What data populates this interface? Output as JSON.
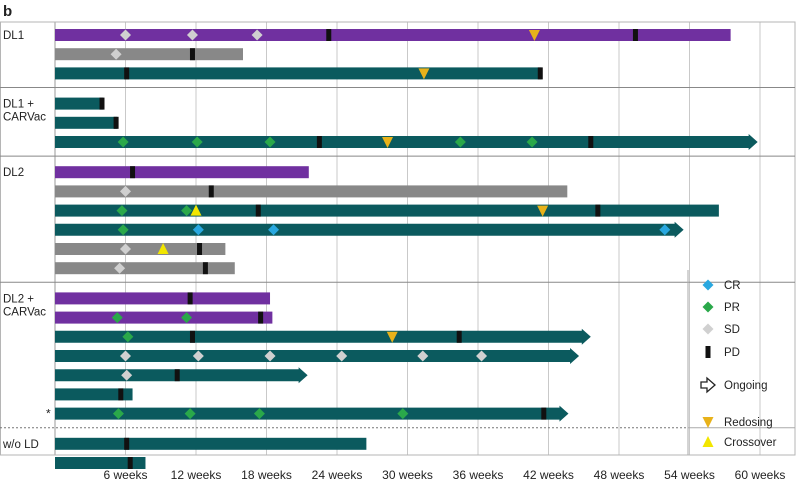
{
  "chart_data": {
    "type": "swimmer",
    "panel_label": "b",
    "x_unit": "weeks",
    "xlim": [
      0,
      60
    ],
    "x_ticks": [
      6,
      12,
      18,
      24,
      30,
      36,
      42,
      48,
      54,
      60
    ],
    "x_tick_labels": [
      "6 weeks",
      "12 weeks",
      "18 weeks",
      "24 weeks",
      "30 weeks",
      "36 weeks",
      "42 weeks",
      "48 weeks",
      "54 weeks",
      "60 weeks"
    ],
    "colors": {
      "purple": "#7030a0",
      "gray": "#888888",
      "teal": "#0b5a5e",
      "CR": "#29a8e0",
      "PR": "#2aa84a",
      "SD": "#d0d0d0",
      "PD": "#111111",
      "Redosing": "#e8b21a",
      "Crossover": "#f2e600"
    },
    "groups": [
      {
        "label": "DL1",
        "patients": [
          {
            "end": 57.5,
            "color": "purple",
            "ongoing": false,
            "markers": [
              {
                "t": 6,
                "type": "SD"
              },
              {
                "t": 11.7,
                "type": "SD"
              },
              {
                "t": 17.2,
                "type": "SD"
              },
              {
                "t": 23.3,
                "type": "PD"
              },
              {
                "t": 40.8,
                "type": "Redosing"
              },
              {
                "t": 49.4,
                "type": "PD"
              }
            ]
          },
          {
            "end": 16,
            "color": "gray",
            "ongoing": false,
            "markers": [
              {
                "t": 5.2,
                "type": "SD"
              },
              {
                "t": 11.7,
                "type": "PD"
              }
            ]
          },
          {
            "end": 41.4,
            "color": "teal",
            "ongoing": false,
            "markers": [
              {
                "t": 6.1,
                "type": "PD"
              },
              {
                "t": 31.4,
                "type": "Redosing"
              },
              {
                "t": 41.3,
                "type": "PD"
              }
            ]
          }
        ]
      },
      {
        "label": "DL1 + CARVac",
        "patients": [
          {
            "end": 4.1,
            "color": "teal",
            "ongoing": false,
            "markers": [
              {
                "t": 4.0,
                "type": "PD"
              }
            ]
          },
          {
            "end": 5.3,
            "color": "teal",
            "ongoing": false,
            "markers": [
              {
                "t": 5.2,
                "type": "PD"
              }
            ]
          },
          {
            "end": 59.8,
            "color": "teal",
            "ongoing": true,
            "markers": [
              {
                "t": 5.8,
                "type": "PR"
              },
              {
                "t": 12.1,
                "type": "PR"
              },
              {
                "t": 18.3,
                "type": "PR"
              },
              {
                "t": 22.5,
                "type": "PD"
              },
              {
                "t": 28.3,
                "type": "Redosing"
              },
              {
                "t": 34.5,
                "type": "PR"
              },
              {
                "t": 40.6,
                "type": "PR"
              },
              {
                "t": 45.6,
                "type": "PD"
              }
            ]
          }
        ]
      },
      {
        "label": "DL2",
        "patients": [
          {
            "end": 21.6,
            "color": "purple",
            "ongoing": false,
            "markers": [
              {
                "t": 6.6,
                "type": "PD"
              }
            ]
          },
          {
            "end": 43.6,
            "color": "gray",
            "ongoing": false,
            "markers": [
              {
                "t": 6,
                "type": "SD"
              },
              {
                "t": 13.3,
                "type": "PD"
              }
            ]
          },
          {
            "end": 56.5,
            "color": "teal",
            "ongoing": false,
            "markers": [
              {
                "t": 5.7,
                "type": "PR"
              },
              {
                "t": 11.2,
                "type": "PR"
              },
              {
                "t": 12,
                "type": "Crossover"
              },
              {
                "t": 17.3,
                "type": "PD"
              },
              {
                "t": 41.5,
                "type": "Redosing"
              },
              {
                "t": 46.2,
                "type": "PD"
              }
            ]
          },
          {
            "end": 53.5,
            "color": "teal",
            "ongoing": true,
            "markers": [
              {
                "t": 5.8,
                "type": "PR"
              },
              {
                "t": 12.2,
                "type": "CR"
              },
              {
                "t": 18.6,
                "type": "CR"
              },
              {
                "t": 51.9,
                "type": "CR"
              }
            ]
          },
          {
            "end": 14.5,
            "color": "gray",
            "ongoing": false,
            "markers": [
              {
                "t": 6,
                "type": "SD"
              },
              {
                "t": 9.2,
                "type": "Crossover"
              },
              {
                "t": 12.3,
                "type": "PD"
              }
            ]
          },
          {
            "end": 15.3,
            "color": "gray",
            "ongoing": false,
            "markers": [
              {
                "t": 5.5,
                "type": "SD"
              },
              {
                "t": 12.8,
                "type": "PD"
              }
            ]
          }
        ]
      },
      {
        "label": "DL2 + CARVac",
        "patients": [
          {
            "end": 18.3,
            "color": "purple",
            "ongoing": false,
            "markers": [
              {
                "t": 11.5,
                "type": "PD"
              }
            ]
          },
          {
            "end": 18.5,
            "color": "purple",
            "ongoing": false,
            "markers": [
              {
                "t": 5.3,
                "type": "PR"
              },
              {
                "t": 11.2,
                "type": "PR"
              },
              {
                "t": 17.5,
                "type": "PD"
              }
            ]
          },
          {
            "end": 45.6,
            "color": "teal",
            "ongoing": true,
            "markers": [
              {
                "t": 6.2,
                "type": "PR"
              },
              {
                "t": 11.7,
                "type": "PD"
              },
              {
                "t": 28.7,
                "type": "Redosing"
              },
              {
                "t": 34.4,
                "type": "PD"
              }
            ]
          },
          {
            "end": 44.6,
            "color": "teal",
            "ongoing": true,
            "markers": [
              {
                "t": 6,
                "type": "SD"
              },
              {
                "t": 12.2,
                "type": "SD"
              },
              {
                "t": 18.3,
                "type": "SD"
              },
              {
                "t": 24.4,
                "type": "SD"
              },
              {
                "t": 31.3,
                "type": "SD"
              },
              {
                "t": 36.3,
                "type": "SD"
              }
            ]
          },
          {
            "end": 21.5,
            "color": "teal",
            "ongoing": true,
            "markers": [
              {
                "t": 6.1,
                "type": "SD"
              },
              {
                "t": 10.4,
                "type": "PD"
              }
            ]
          },
          {
            "end": 6.6,
            "color": "teal",
            "ongoing": false,
            "markers": [
              {
                "t": 5.6,
                "type": "PD"
              }
            ]
          },
          {
            "end": 43.7,
            "color": "teal",
            "ongoing": true,
            "label": "*",
            "markers": [
              {
                "t": 5.4,
                "type": "PR"
              },
              {
                "t": 11.5,
                "type": "PR"
              },
              {
                "t": 17.4,
                "type": "PR"
              },
              {
                "t": 29.6,
                "type": "PR"
              },
              {
                "t": 41.6,
                "type": "PD"
              }
            ]
          }
        ]
      },
      {
        "label": "w/o LD",
        "patients": [
          {
            "end": 26.5,
            "color": "teal",
            "ongoing": false,
            "markers": [
              {
                "t": 6.1,
                "type": "PD"
              }
            ]
          },
          {
            "end": 7.7,
            "color": "teal",
            "ongoing": false,
            "markers": [
              {
                "t": 6.4,
                "type": "PD"
              }
            ]
          }
        ]
      }
    ],
    "legend": {
      "position": "right",
      "items": [
        {
          "type": "CR",
          "label": "CR"
        },
        {
          "type": "PR",
          "label": "PR"
        },
        {
          "type": "SD",
          "label": "SD"
        },
        {
          "type": "PD",
          "label": "PD"
        },
        {
          "type": "Ongoing",
          "label": "Ongoing"
        },
        {
          "type": "Redosing",
          "label": "Redosing"
        },
        {
          "type": "Crossover",
          "label": "Crossover"
        }
      ]
    }
  }
}
